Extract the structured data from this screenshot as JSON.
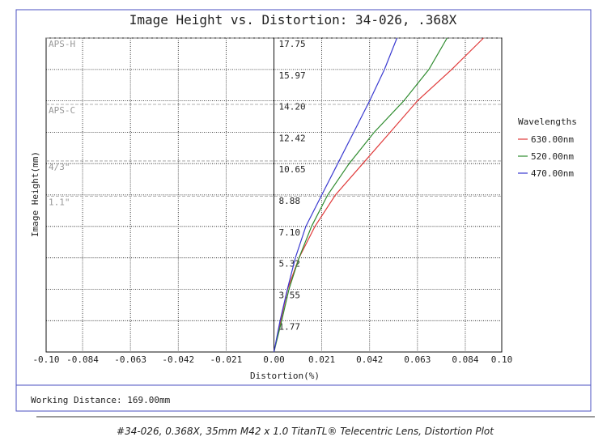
{
  "chart_data": {
    "type": "line",
    "title": "Image Height vs. Distortion: 34-026, .368X",
    "x_label": "Distortion(%)",
    "y_label": "Image Height(mm)",
    "xlim": [
      -0.1,
      0.1
    ],
    "xticks": [
      {
        "value": -0.1,
        "label": "-0.10"
      },
      -0.084,
      -0.063,
      -0.042,
      -0.021,
      {
        "value": 0,
        "label": "0.00"
      },
      0.021,
      0.042,
      0.063,
      0.084,
      {
        "value": 0.1,
        "label": "0.10"
      }
    ],
    "ylim": [
      0,
      17.75
    ],
    "yticks": [
      1.77,
      3.55,
      5.32,
      {
        "value": 7.1,
        "label": "7.10"
      },
      8.88,
      10.65,
      12.42,
      {
        "value": 14.2,
        "label": "14.20"
      },
      15.97,
      17.75
    ],
    "grid": true,
    "y": [
      0,
      1.77,
      3.55,
      5.32,
      7.1,
      8.88,
      10.65,
      12.42,
      14.2,
      15.97,
      17.75
    ],
    "series": [
      {
        "name": "630.00nm",
        "color": "#e03a3a",
        "x": [
          0,
          0.003,
          0.006,
          0.011,
          0.018,
          0.027,
          0.039,
          0.051,
          0.063,
          0.078,
          0.092
        ]
      },
      {
        "name": "520.00nm",
        "color": "#2e8b2e",
        "x": [
          0,
          0.0034,
          0.0066,
          0.011,
          0.0165,
          0.0236,
          0.033,
          0.044,
          0.057,
          0.068,
          0.076
        ]
      },
      {
        "name": "470.00nm",
        "color": "#3a3ad0",
        "x": [
          0,
          0.0027,
          0.0059,
          0.0094,
          0.014,
          0.021,
          0.028,
          0.035,
          0.042,
          0.0485,
          0.054
        ]
      }
    ],
    "legend_title": "Wavelengths",
    "sensor_lines": [
      {
        "label": "APS-H",
        "value": 17.75
      },
      {
        "label": "APS-C",
        "value": 14.0
      },
      {
        "label": "4/3\"",
        "value": 10.8
      },
      {
        "label": "1.1\"",
        "value": 8.8
      }
    ],
    "working_distance": "Working Distance: 169.00mm",
    "caption": "#34-026, 0.368X, 35mm M42 x 1.0 TitanTL® Telecentric Lens, Distortion Plot"
  }
}
